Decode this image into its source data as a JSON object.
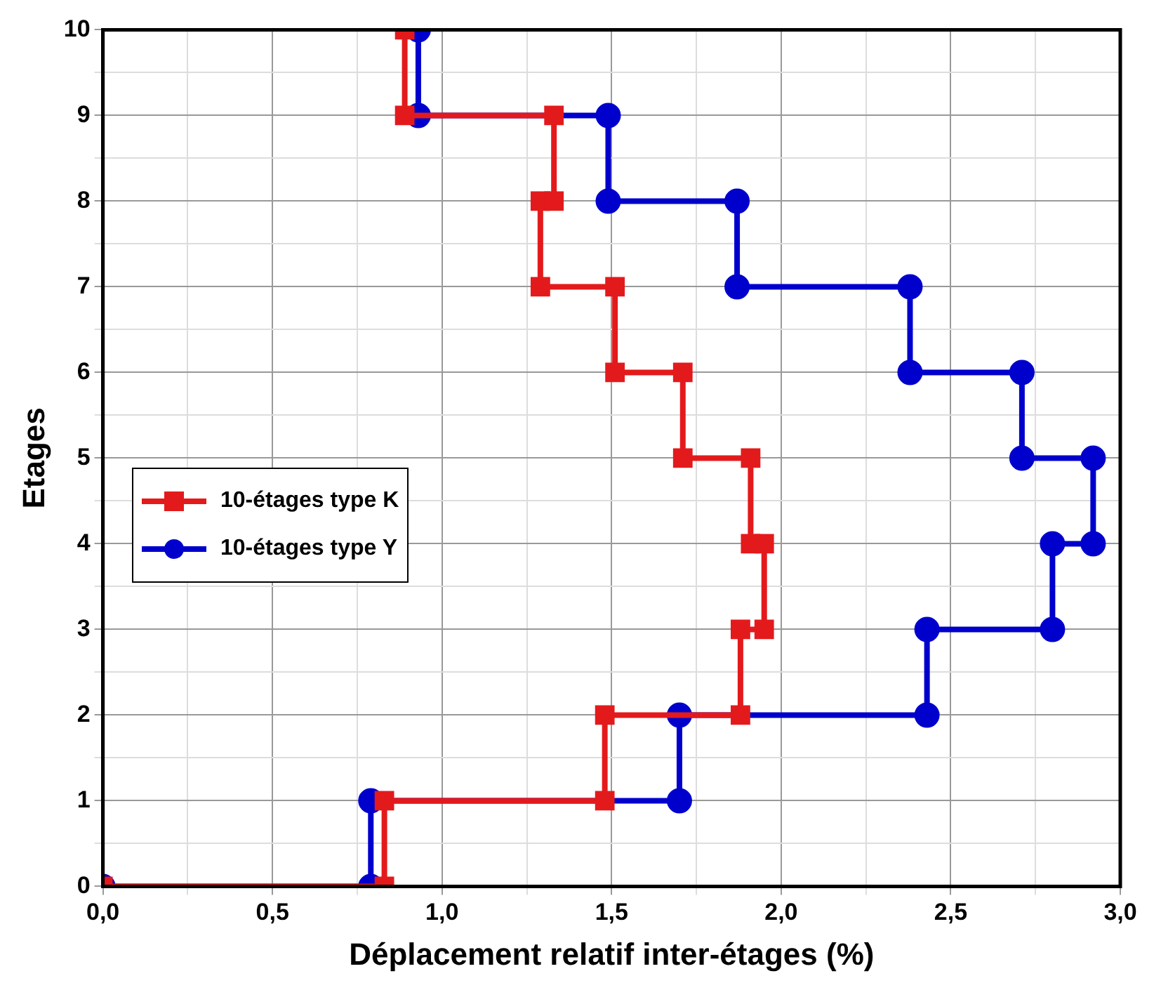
{
  "chart_data": {
    "type": "line",
    "xlabel": "Déplacement relatif inter-étages (%)",
    "ylabel": "Etages",
    "xlim": [
      0,
      3
    ],
    "ylim": [
      0,
      10
    ],
    "xticks": [
      {
        "value": 0,
        "label": "0,0"
      },
      {
        "value": 0.25,
        "label": null
      },
      {
        "value": 0.5,
        "label": "0,5"
      },
      {
        "value": 0.75,
        "label": null
      },
      {
        "value": 1,
        "label": "1,0"
      },
      {
        "value": 1.25,
        "label": null
      },
      {
        "value": 1.5,
        "label": "1,5"
      },
      {
        "value": 1.75,
        "label": null
      },
      {
        "value": 2,
        "label": "2,0"
      },
      {
        "value": 2.25,
        "label": null
      },
      {
        "value": 2.5,
        "label": "2,5"
      },
      {
        "value": 2.75,
        "label": null
      },
      {
        "value": 3,
        "label": "3,0"
      }
    ],
    "yticks": [
      0,
      {
        "value": 0.5,
        "label": null
      },
      1,
      {
        "value": 1.5,
        "label": null
      },
      2,
      {
        "value": 2.5,
        "label": null
      },
      3,
      {
        "value": 3.5,
        "label": null
      },
      4,
      {
        "value": 4.5,
        "label": null
      },
      5,
      {
        "value": 5.5,
        "label": null
      },
      6,
      {
        "value": 6.5,
        "label": null
      },
      7,
      {
        "value": 7.5,
        "label": null
      },
      8,
      {
        "value": 8.5,
        "label": null
      },
      9,
      {
        "value": 9.5,
        "label": null
      },
      10
    ],
    "grid": true,
    "legend": "left",
    "line_style": "solid",
    "series": [
      {
        "name": "10-étages type K",
        "color": "#e31a1c",
        "marker": "square",
        "x": [
          0,
          0.83,
          0.83,
          1.48,
          1.48,
          1.88,
          1.88,
          1.95,
          1.95,
          1.91,
          1.91,
          1.71,
          1.71,
          1.51,
          1.51,
          1.29,
          1.29,
          1.33,
          1.33,
          0.89,
          0.89
        ],
        "values": [
          0,
          0,
          1,
          1,
          2,
          2,
          3,
          3,
          4,
          4,
          5,
          5,
          6,
          6,
          7,
          7,
          8,
          8,
          9,
          9,
          10
        ]
      },
      {
        "name": "10-étages type Y",
        "color": "#0000cc",
        "marker": "circle",
        "x": [
          0,
          0.79,
          0.79,
          1.7,
          1.7,
          2.43,
          2.43,
          2.8,
          2.8,
          2.92,
          2.92,
          2.71,
          2.71,
          2.38,
          2.38,
          1.87,
          1.87,
          1.49,
          1.49,
          0.93,
          0.93
        ],
        "values": [
          0,
          0,
          1,
          1,
          2,
          2,
          3,
          3,
          4,
          4,
          5,
          5,
          6,
          6,
          7,
          7,
          8,
          8,
          9,
          9,
          10
        ]
      }
    ]
  }
}
